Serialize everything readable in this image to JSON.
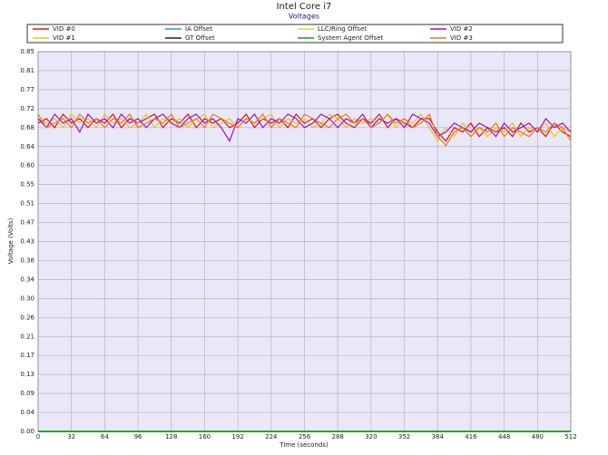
{
  "chart_data": {
    "type": "line",
    "title": "Intel Core i7",
    "subtitle": "Voltages",
    "x_label": "Time (seconds)",
    "y_label": "Voltage (Volts)",
    "xlim": [
      0,
      512
    ],
    "xticks": [
      0,
      32,
      64,
      96,
      128,
      160,
      192,
      224,
      256,
      288,
      320,
      352,
      384,
      416,
      448,
      480,
      512
    ],
    "ylim": [
      0,
      0.85
    ],
    "yticks": [
      {
        "value": 0,
        "label": "0.00"
      },
      {
        "value": 0.0425,
        "label": "0.04"
      },
      {
        "value": 0.085,
        "label": "0.09"
      },
      {
        "value": 0.1275,
        "label": "0.13"
      },
      {
        "value": 0.17,
        "label": "0.17"
      },
      {
        "value": 0.2125,
        "label": "0.21"
      },
      {
        "value": 0.255,
        "label": "0.26"
      },
      {
        "value": 0.2975,
        "label": "0.30"
      },
      {
        "value": 0.34,
        "label": "0.34"
      },
      {
        "value": 0.3825,
        "label": "0.38"
      },
      {
        "value": 0.425,
        "label": "0.43"
      },
      {
        "value": 0.4675,
        "label": "0.47"
      },
      {
        "value": 0.51,
        "label": "0.51"
      },
      {
        "value": 0.5525,
        "label": "0.55"
      },
      {
        "value": 0.595,
        "label": "0.60"
      },
      {
        "value": 0.6375,
        "label": "0.64"
      },
      {
        "value": 0.68,
        "label": "0.68"
      },
      {
        "value": 0.7225,
        "label": "0.72"
      },
      {
        "value": 0.765,
        "label": "0.77"
      },
      {
        "value": 0.8075,
        "label": "0.81"
      },
      {
        "value": 0.85,
        "label": "0.85"
      }
    ],
    "grid": true,
    "x": [
      0,
      8,
      16,
      24,
      32,
      40,
      48,
      56,
      64,
      72,
      80,
      88,
      96,
      104,
      112,
      120,
      128,
      136,
      144,
      152,
      160,
      168,
      176,
      184,
      192,
      200,
      208,
      216,
      224,
      232,
      240,
      248,
      256,
      264,
      272,
      280,
      288,
      296,
      304,
      312,
      320,
      328,
      336,
      344,
      352,
      360,
      368,
      376,
      384,
      392,
      400,
      408,
      416,
      424,
      432,
      440,
      448,
      456,
      464,
      472,
      480,
      488,
      496,
      504,
      512
    ],
    "series": [
      {
        "name": "VID #0",
        "color": "#e01010",
        "values": [
          0.69,
          0.7,
          0.68,
          0.71,
          0.69,
          0.7,
          0.68,
          0.7,
          0.69,
          0.71,
          0.68,
          0.7,
          0.69,
          0.7,
          0.71,
          0.68,
          0.7,
          0.69,
          0.71,
          0.68,
          0.7,
          0.69,
          0.7,
          0.68,
          0.69,
          0.71,
          0.68,
          0.7,
          0.69,
          0.7,
          0.68,
          0.71,
          0.69,
          0.7,
          0.68,
          0.7,
          0.71,
          0.69,
          0.68,
          0.7,
          0.69,
          0.71,
          0.68,
          0.7,
          0.69,
          0.68,
          0.7,
          0.7,
          0.67,
          0.65,
          0.68,
          0.67,
          0.69,
          0.66,
          0.68,
          0.67,
          0.68,
          0.66,
          0.69,
          0.67,
          0.68,
          0.66,
          0.69,
          0.67,
          0.66
        ]
      },
      {
        "name": "VID #1",
        "color": "#f0c020",
        "values": [
          0.7,
          0.69,
          0.7,
          0.68,
          0.71,
          0.69,
          0.7,
          0.68,
          0.71,
          0.69,
          0.7,
          0.68,
          0.69,
          0.71,
          0.68,
          0.7,
          0.69,
          0.7,
          0.68,
          0.7,
          0.71,
          0.68,
          0.69,
          0.7,
          0.68,
          0.7,
          0.69,
          0.7,
          0.71,
          0.68,
          0.7,
          0.69,
          0.7,
          0.68,
          0.69,
          0.71,
          0.7,
          0.68,
          0.7,
          0.69,
          0.7,
          0.69,
          0.71,
          0.68,
          0.7,
          0.69,
          0.71,
          0.68,
          0.65,
          0.68,
          0.66,
          0.69,
          0.67,
          0.68,
          0.66,
          0.68,
          0.67,
          0.69,
          0.66,
          0.68,
          0.67,
          0.69,
          0.66,
          0.68,
          0.67
        ]
      },
      {
        "name": "IA Offset",
        "color": "#3c8cc8",
        "values": [
          0,
          0,
          0,
          0,
          0,
          0,
          0,
          0,
          0,
          0,
          0,
          0,
          0,
          0,
          0,
          0,
          0,
          0,
          0,
          0,
          0,
          0,
          0,
          0,
          0,
          0,
          0,
          0,
          0,
          0,
          0,
          0,
          0,
          0,
          0,
          0,
          0,
          0,
          0,
          0,
          0,
          0,
          0,
          0,
          0,
          0,
          0,
          0,
          0,
          0,
          0,
          0,
          0,
          0,
          0,
          0,
          0,
          0,
          0,
          0,
          0,
          0,
          0,
          0,
          0
        ]
      },
      {
        "name": "GT Offset",
        "color": "#101890",
        "values": [
          0,
          0,
          0,
          0,
          0,
          0,
          0,
          0,
          0,
          0,
          0,
          0,
          0,
          0,
          0,
          0,
          0,
          0,
          0,
          0,
          0,
          0,
          0,
          0,
          0,
          0,
          0,
          0,
          0,
          0,
          0,
          0,
          0,
          0,
          0,
          0,
          0,
          0,
          0,
          0,
          0,
          0,
          0,
          0,
          0,
          0,
          0,
          0,
          0,
          0,
          0,
          0,
          0,
          0,
          0,
          0,
          0,
          0,
          0,
          0,
          0,
          0,
          0,
          0,
          0
        ]
      },
      {
        "name": "LLC/Ring Offset",
        "color": "#c8e050",
        "values": [
          0,
          0,
          0,
          0,
          0,
          0,
          0,
          0,
          0,
          0,
          0,
          0,
          0,
          0,
          0,
          0,
          0,
          0,
          0,
          0,
          0,
          0,
          0,
          0,
          0,
          0,
          0,
          0,
          0,
          0,
          0,
          0,
          0,
          0,
          0,
          0,
          0,
          0,
          0,
          0,
          0,
          0,
          0,
          0,
          0,
          0,
          0,
          0,
          0,
          0,
          0,
          0,
          0,
          0,
          0,
          0,
          0,
          0,
          0,
          0,
          0,
          0,
          0,
          0,
          0
        ]
      },
      {
        "name": "System Agent Offset",
        "color": "#10a010",
        "values": [
          0,
          0,
          0,
          0,
          0,
          0,
          0,
          0,
          0,
          0,
          0,
          0,
          0,
          0,
          0,
          0,
          0,
          0,
          0,
          0,
          0,
          0,
          0,
          0,
          0,
          0,
          0,
          0,
          0,
          0,
          0,
          0,
          0,
          0,
          0,
          0,
          0,
          0,
          0,
          0,
          0,
          0,
          0,
          0,
          0,
          0,
          0,
          0,
          0,
          0,
          0,
          0,
          0,
          0,
          0,
          0,
          0,
          0,
          0,
          0,
          0,
          0,
          0,
          0,
          0
        ]
      },
      {
        "name": "VID #2",
        "color": "#a010c8",
        "values": [
          0.7,
          0.68,
          0.71,
          0.69,
          0.7,
          0.67,
          0.71,
          0.69,
          0.7,
          0.68,
          0.71,
          0.69,
          0.7,
          0.68,
          0.7,
          0.71,
          0.69,
          0.68,
          0.7,
          0.71,
          0.69,
          0.7,
          0.68,
          0.65,
          0.7,
          0.69,
          0.71,
          0.68,
          0.7,
          0.69,
          0.71,
          0.7,
          0.68,
          0.69,
          0.71,
          0.7,
          0.68,
          0.7,
          0.69,
          0.71,
          0.68,
          0.7,
          0.69,
          0.7,
          0.68,
          0.71,
          0.7,
          0.69,
          0.66,
          0.67,
          0.69,
          0.68,
          0.67,
          0.69,
          0.68,
          0.66,
          0.69,
          0.67,
          0.68,
          0.69,
          0.67,
          0.7,
          0.68,
          0.69,
          0.67
        ]
      },
      {
        "name": "VID #3",
        "color": "#f07818",
        "values": [
          0.71,
          0.68,
          0.69,
          0.7,
          0.68,
          0.71,
          0.69,
          0.7,
          0.68,
          0.7,
          0.69,
          0.71,
          0.68,
          0.69,
          0.7,
          0.69,
          0.71,
          0.68,
          0.69,
          0.7,
          0.68,
          0.71,
          0.7,
          0.69,
          0.68,
          0.7,
          0.69,
          0.71,
          0.68,
          0.7,
          0.69,
          0.68,
          0.71,
          0.7,
          0.69,
          0.68,
          0.7,
          0.71,
          0.69,
          0.7,
          0.68,
          0.69,
          0.71,
          0.69,
          0.7,
          0.68,
          0.69,
          0.71,
          0.66,
          0.64,
          0.67,
          0.68,
          0.66,
          0.68,
          0.67,
          0.69,
          0.66,
          0.68,
          0.67,
          0.66,
          0.68,
          0.67,
          0.69,
          0.68,
          0.65
        ]
      }
    ]
  }
}
